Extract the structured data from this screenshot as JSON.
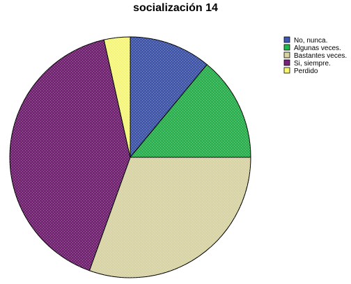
{
  "chart_data": {
    "type": "pie",
    "title": "socialización 14",
    "legend_position": "right",
    "start_direction": "top",
    "direction": "clockwise",
    "slices": [
      {
        "label": "No, nunca.",
        "value": 11.0,
        "color": "#3F57B5"
      },
      {
        "label": "Algunas veces.",
        "value": 14.0,
        "color": "#22B84A"
      },
      {
        "label": "Bastantes veces.",
        "value": 30.5,
        "color": "#D9D4A0"
      },
      {
        "label": "Si, siempre.",
        "value": 41.0,
        "color": "#7A227A"
      },
      {
        "label": "Perdido",
        "value": 3.5,
        "color": "#F8F86E"
      }
    ]
  }
}
